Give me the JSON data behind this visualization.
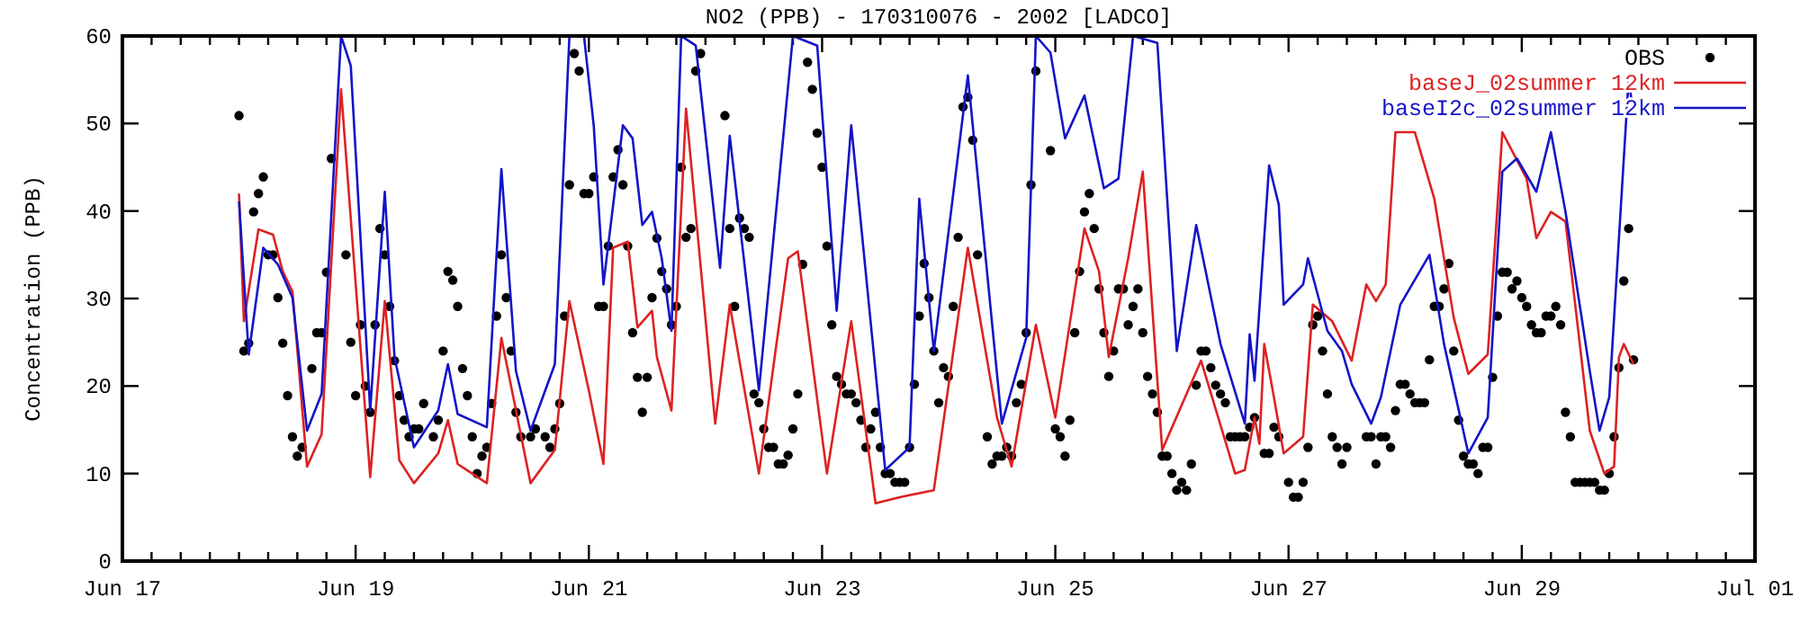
{
  "chart_data": {
    "type": "line",
    "title": "NO2 (PPB) - 170310076 - 2002 [LADCO]",
    "ylabel": "Concentration (PPB)",
    "legend": "top right",
    "grid": false,
    "xlim": [
      "2002-06-17T00:00",
      "2002-07-01T00:00"
    ],
    "xticks": [
      {
        "value": "2002-06-17T00:00",
        "label": "Jun 17"
      },
      {
        "value": "2002-06-17T06:00",
        "label": null
      },
      {
        "value": "2002-06-17T12:00",
        "label": null
      },
      {
        "value": "2002-06-17T18:00",
        "label": null
      },
      {
        "value": "2002-06-18T00:00",
        "label": null
      },
      {
        "value": "2002-06-18T06:00",
        "label": null
      },
      {
        "value": "2002-06-18T12:00",
        "label": null
      },
      {
        "value": "2002-06-18T18:00",
        "label": null
      },
      {
        "value": "2002-06-19T00:00",
        "label": "Jun 19"
      },
      {
        "value": "2002-06-19T06:00",
        "label": null
      },
      {
        "value": "2002-06-19T12:00",
        "label": null
      },
      {
        "value": "2002-06-19T18:00",
        "label": null
      },
      {
        "value": "2002-06-20T00:00",
        "label": null
      },
      {
        "value": "2002-06-20T06:00",
        "label": null
      },
      {
        "value": "2002-06-20T12:00",
        "label": null
      },
      {
        "value": "2002-06-20T18:00",
        "label": null
      },
      {
        "value": "2002-06-21T00:00",
        "label": "Jun 21"
      },
      {
        "value": "2002-06-21T06:00",
        "label": null
      },
      {
        "value": "2002-06-21T12:00",
        "label": null
      },
      {
        "value": "2002-06-21T18:00",
        "label": null
      },
      {
        "value": "2002-06-22T00:00",
        "label": null
      },
      {
        "value": "2002-06-22T06:00",
        "label": null
      },
      {
        "value": "2002-06-22T12:00",
        "label": null
      },
      {
        "value": "2002-06-22T18:00",
        "label": null
      },
      {
        "value": "2002-06-23T00:00",
        "label": "Jun 23"
      },
      {
        "value": "2002-06-23T06:00",
        "label": null
      },
      {
        "value": "2002-06-23T12:00",
        "label": null
      },
      {
        "value": "2002-06-23T18:00",
        "label": null
      },
      {
        "value": "2002-06-24T00:00",
        "label": null
      },
      {
        "value": "2002-06-24T06:00",
        "label": null
      },
      {
        "value": "2002-06-24T12:00",
        "label": null
      },
      {
        "value": "2002-06-24T18:00",
        "label": null
      },
      {
        "value": "2002-06-25T00:00",
        "label": "Jun 25"
      },
      {
        "value": "2002-06-25T06:00",
        "label": null
      },
      {
        "value": "2002-06-25T12:00",
        "label": null
      },
      {
        "value": "2002-06-25T18:00",
        "label": null
      },
      {
        "value": "2002-06-26T00:00",
        "label": null
      },
      {
        "value": "2002-06-26T06:00",
        "label": null
      },
      {
        "value": "2002-06-26T12:00",
        "label": null
      },
      {
        "value": "2002-06-26T18:00",
        "label": null
      },
      {
        "value": "2002-06-27T00:00",
        "label": "Jun 27"
      },
      {
        "value": "2002-06-27T06:00",
        "label": null
      },
      {
        "value": "2002-06-27T12:00",
        "label": null
      },
      {
        "value": "2002-06-27T18:00",
        "label": null
      },
      {
        "value": "2002-06-28T00:00",
        "label": null
      },
      {
        "value": "2002-06-28T06:00",
        "label": null
      },
      {
        "value": "2002-06-28T12:00",
        "label": null
      },
      {
        "value": "2002-06-28T18:00",
        "label": null
      },
      {
        "value": "2002-06-29T00:00",
        "label": "Jun 29"
      },
      {
        "value": "2002-06-29T06:00",
        "label": null
      },
      {
        "value": "2002-06-29T12:00",
        "label": null
      },
      {
        "value": "2002-06-29T18:00",
        "label": null
      },
      {
        "value": "2002-06-30T00:00",
        "label": null
      },
      {
        "value": "2002-06-30T06:00",
        "label": null
      },
      {
        "value": "2002-06-30T12:00",
        "label": null
      },
      {
        "value": "2002-06-30T18:00",
        "label": null
      },
      {
        "value": "2002-07-01T00:00",
        "label": "Jul 01"
      }
    ],
    "ylim": [
      0,
      60
    ],
    "yticks": [
      0,
      10,
      20,
      30,
      40,
      50,
      60
    ],
    "series": [
      {
        "name": "OBS",
        "type": "scatter",
        "marker": "circle",
        "color": "#000000",
        "x": [
          "2002-06-18T00:00",
          "2002-06-18T01:00",
          "2002-06-18T02:00",
          "2002-06-18T03:00",
          "2002-06-18T04:00",
          "2002-06-18T05:00",
          "2002-06-18T06:00",
          "2002-06-18T07:00",
          "2002-06-18T08:00",
          "2002-06-18T09:00",
          "2002-06-18T10:00",
          "2002-06-18T11:00",
          "2002-06-18T12:00",
          "2002-06-18T13:00",
          "2002-06-18T15:00",
          "2002-06-18T16:00",
          "2002-06-18T17:00",
          "2002-06-18T18:00",
          "2002-06-18T19:00",
          "2002-06-18T22:00",
          "2002-06-18T23:00",
          "2002-06-19T00:00",
          "2002-06-19T01:00",
          "2002-06-19T02:00",
          "2002-06-19T03:00",
          "2002-06-19T04:00",
          "2002-06-19T05:00",
          "2002-06-19T06:00",
          "2002-06-19T07:00",
          "2002-06-19T08:00",
          "2002-06-19T09:00",
          "2002-06-19T10:00",
          "2002-06-19T11:00",
          "2002-06-19T12:00",
          "2002-06-19T13:00",
          "2002-06-19T14:00",
          "2002-06-19T16:00",
          "2002-06-19T17:00",
          "2002-06-19T18:00",
          "2002-06-19T19:00",
          "2002-06-19T20:00",
          "2002-06-19T21:00",
          "2002-06-19T22:00",
          "2002-06-19T23:00",
          "2002-06-20T00:00",
          "2002-06-20T01:00",
          "2002-06-20T02:00",
          "2002-06-20T03:00",
          "2002-06-20T04:00",
          "2002-06-20T05:00",
          "2002-06-20T06:00",
          "2002-06-20T07:00",
          "2002-06-20T08:00",
          "2002-06-20T09:00",
          "2002-06-20T10:00",
          "2002-06-20T12:00",
          "2002-06-20T13:00",
          "2002-06-20T15:00",
          "2002-06-20T16:00",
          "2002-06-20T17:00",
          "2002-06-20T18:00",
          "2002-06-20T19:00",
          "2002-06-20T20:00",
          "2002-06-20T21:00",
          "2002-06-20T22:00",
          "2002-06-20T23:00",
          "2002-06-21T00:00",
          "2002-06-21T01:00",
          "2002-06-21T02:00",
          "2002-06-21T03:00",
          "2002-06-21T04:00",
          "2002-06-21T05:00",
          "2002-06-21T06:00",
          "2002-06-21T07:00",
          "2002-06-21T08:00",
          "2002-06-21T09:00",
          "2002-06-21T10:00",
          "2002-06-21T11:00",
          "2002-06-21T12:00",
          "2002-06-21T13:00",
          "2002-06-21T14:00",
          "2002-06-21T15:00",
          "2002-06-21T16:00",
          "2002-06-21T17:00",
          "2002-06-21T18:00",
          "2002-06-21T19:00",
          "2002-06-21T20:00",
          "2002-06-21T21:00",
          "2002-06-21T22:00",
          "2002-06-21T23:00",
          "2002-06-22T04:00",
          "2002-06-22T05:00",
          "2002-06-22T06:00",
          "2002-06-22T07:00",
          "2002-06-22T08:00",
          "2002-06-22T09:00",
          "2002-06-22T10:00",
          "2002-06-22T11:00",
          "2002-06-22T12:00",
          "2002-06-22T13:00",
          "2002-06-22T14:00",
          "2002-06-22T15:00",
          "2002-06-22T16:00",
          "2002-06-22T17:00",
          "2002-06-22T18:00",
          "2002-06-22T19:00",
          "2002-06-22T20:00",
          "2002-06-22T21:00",
          "2002-06-22T22:00",
          "2002-06-22T23:00",
          "2002-06-23T00:00",
          "2002-06-23T01:00",
          "2002-06-23T02:00",
          "2002-06-23T03:00",
          "2002-06-23T04:00",
          "2002-06-23T05:00",
          "2002-06-23T06:00",
          "2002-06-23T07:00",
          "2002-06-23T08:00",
          "2002-06-23T09:00",
          "2002-06-23T10:00",
          "2002-06-23T11:00",
          "2002-06-23T12:00",
          "2002-06-23T13:00",
          "2002-06-23T14:00",
          "2002-06-23T15:00",
          "2002-06-23T16:00",
          "2002-06-23T17:00",
          "2002-06-23T18:00",
          "2002-06-23T19:00",
          "2002-06-23T20:00",
          "2002-06-23T21:00",
          "2002-06-23T22:00",
          "2002-06-23T23:00",
          "2002-06-24T00:00",
          "2002-06-24T01:00",
          "2002-06-24T02:00",
          "2002-06-24T03:00",
          "2002-06-24T04:00",
          "2002-06-24T05:00",
          "2002-06-24T06:00",
          "2002-06-24T07:00",
          "2002-06-24T08:00",
          "2002-06-24T10:00",
          "2002-06-24T11:00",
          "2002-06-24T12:00",
          "2002-06-24T13:00",
          "2002-06-24T14:00",
          "2002-06-24T15:00",
          "2002-06-24T16:00",
          "2002-06-24T17:00",
          "2002-06-24T18:00",
          "2002-06-24T19:00",
          "2002-06-24T20:00",
          "2002-06-24T23:00",
          "2002-06-25T00:00",
          "2002-06-25T01:00",
          "2002-06-25T02:00",
          "2002-06-25T03:00",
          "2002-06-25T04:00",
          "2002-06-25T05:00",
          "2002-06-25T06:00",
          "2002-06-25T07:00",
          "2002-06-25T08:00",
          "2002-06-25T09:00",
          "2002-06-25T10:00",
          "2002-06-25T11:00",
          "2002-06-25T12:00",
          "2002-06-25T13:00",
          "2002-06-25T14:00",
          "2002-06-25T15:00",
          "2002-06-25T16:00",
          "2002-06-25T17:00",
          "2002-06-25T18:00",
          "2002-06-25T19:00",
          "2002-06-25T20:00",
          "2002-06-25T21:00",
          "2002-06-25T22:00",
          "2002-06-25T23:00",
          "2002-06-26T00:00",
          "2002-06-26T01:00",
          "2002-06-26T02:00",
          "2002-06-26T03:00",
          "2002-06-26T04:00",
          "2002-06-26T05:00",
          "2002-06-26T06:00",
          "2002-06-26T07:00",
          "2002-06-26T08:00",
          "2002-06-26T09:00",
          "2002-06-26T10:00",
          "2002-06-26T11:00",
          "2002-06-26T12:00",
          "2002-06-26T13:00",
          "2002-06-26T14:00",
          "2002-06-26T15:00",
          "2002-06-26T16:00",
          "2002-06-26T17:00",
          "2002-06-26T19:00",
          "2002-06-26T20:00",
          "2002-06-26T21:00",
          "2002-06-26T22:00",
          "2002-06-27T00:00",
          "2002-06-27T01:00",
          "2002-06-27T02:00",
          "2002-06-27T03:00",
          "2002-06-27T04:00",
          "2002-06-27T05:00",
          "2002-06-27T06:00",
          "2002-06-27T07:00",
          "2002-06-27T08:00",
          "2002-06-27T09:00",
          "2002-06-27T10:00",
          "2002-06-27T11:00",
          "2002-06-27T12:00",
          "2002-06-27T16:00",
          "2002-06-27T17:00",
          "2002-06-27T18:00",
          "2002-06-27T19:00",
          "2002-06-27T20:00",
          "2002-06-27T21:00",
          "2002-06-27T22:00",
          "2002-06-27T23:00",
          "2002-06-28T00:00",
          "2002-06-28T01:00",
          "2002-06-28T02:00",
          "2002-06-28T03:00",
          "2002-06-28T04:00",
          "2002-06-28T05:00",
          "2002-06-28T06:00",
          "2002-06-28T07:00",
          "2002-06-28T08:00",
          "2002-06-28T09:00",
          "2002-06-28T10:00",
          "2002-06-28T11:00",
          "2002-06-28T12:00",
          "2002-06-28T13:00",
          "2002-06-28T14:00",
          "2002-06-28T15:00",
          "2002-06-28T16:00",
          "2002-06-28T17:00",
          "2002-06-28T18:00",
          "2002-06-28T19:00",
          "2002-06-28T20:00",
          "2002-06-28T21:00",
          "2002-06-28T22:00",
          "2002-06-28T23:00",
          "2002-06-29T00:00",
          "2002-06-29T01:00",
          "2002-06-29T02:00",
          "2002-06-29T03:00",
          "2002-06-29T04:00",
          "2002-06-29T05:00",
          "2002-06-29T06:00",
          "2002-06-29T07:00",
          "2002-06-29T08:00",
          "2002-06-29T09:00",
          "2002-06-29T10:00",
          "2002-06-29T11:00",
          "2002-06-29T12:00",
          "2002-06-29T13:00",
          "2002-06-29T14:00",
          "2002-06-29T15:00",
          "2002-06-29T16:00",
          "2002-06-29T17:00",
          "2002-06-29T18:00",
          "2002-06-29T19:00",
          "2002-06-29T20:00",
          "2002-06-29T21:00",
          "2002-06-29T22:00",
          "2002-06-29T23:00"
        ],
        "values": [
          50.9,
          24.0,
          24.9,
          39.9,
          42.0,
          43.9,
          35.0,
          35.0,
          30.1,
          24.9,
          18.9,
          14.2,
          12.0,
          13.0,
          22.0,
          26.1,
          26.1,
          33.0,
          46.0,
          35.0,
          25.0,
          18.9,
          27.0,
          20.0,
          17.0,
          27.0,
          38.0,
          35.0,
          29.1,
          22.9,
          18.9,
          16.1,
          14.2,
          15.1,
          15.1,
          18.0,
          14.2,
          16.1,
          24.0,
          33.1,
          32.1,
          29.1,
          22.0,
          18.9,
          14.2,
          10.0,
          12.0,
          13.0,
          18.0,
          28.0,
          35.0,
          30.1,
          24.0,
          17.0,
          14.2,
          14.2,
          15.1,
          14.2,
          13.0,
          15.1,
          18.0,
          28.0,
          43.0,
          58.0,
          56.0,
          42.0,
          42.0,
          43.9,
          29.1,
          29.1,
          36.0,
          43.9,
          47.0,
          43.0,
          36.0,
          26.1,
          21.0,
          17.0,
          21.0,
          30.1,
          36.9,
          33.1,
          31.1,
          27.0,
          29.1,
          45.0,
          37.0,
          38.0,
          56.0,
          58.0,
          50.9,
          38.0,
          29.1,
          39.2,
          38.0,
          37.0,
          19.1,
          18.1,
          15.1,
          13.0,
          13.0,
          11.1,
          11.1,
          12.1,
          15.1,
          19.1,
          33.9,
          57.0,
          53.9,
          48.9,
          45.0,
          36.0,
          27.0,
          21.1,
          20.2,
          19.1,
          19.1,
          18.1,
          16.1,
          13.0,
          15.1,
          17.0,
          13.0,
          10.0,
          10.0,
          9.0,
          9.0,
          9.0,
          13.0,
          20.2,
          28.0,
          34.0,
          30.1,
          24.0,
          18.1,
          22.1,
          21.1,
          29.1,
          37.0,
          51.9,
          53.0,
          48.1,
          35.0,
          14.2,
          11.1,
          12.0,
          12.0,
          13.0,
          12.0,
          18.1,
          20.2,
          26.1,
          43.0,
          56.0,
          46.9,
          15.1,
          14.2,
          12.0,
          16.1,
          26.1,
          33.1,
          39.9,
          42.0,
          38.0,
          31.1,
          26.1,
          21.1,
          24.0,
          31.1,
          31.1,
          27.0,
          29.1,
          31.1,
          26.1,
          21.1,
          19.1,
          17.0,
          12.0,
          12.0,
          10.0,
          8.1,
          9.0,
          8.1,
          11.1,
          20.1,
          24.0,
          24.0,
          22.1,
          20.1,
          19.1,
          18.1,
          14.2,
          14.2,
          14.2,
          14.2,
          15.3,
          16.4,
          12.3,
          12.3,
          15.3,
          14.2,
          9.0,
          7.3,
          7.3,
          9.0,
          13.0,
          27.0,
          28.0,
          24.0,
          19.1,
          14.2,
          13.0,
          11.1,
          13.0,
          14.2,
          14.2,
          11.1,
          14.2,
          14.2,
          13.0,
          17.2,
          20.2,
          20.2,
          19.1,
          18.1,
          18.1,
          18.1,
          23.0,
          29.1,
          29.1,
          31.1,
          34.0,
          24.0,
          16.1,
          12.0,
          11.1,
          11.1,
          10.0,
          13.0,
          13.0,
          21.0,
          28.0,
          33.0,
          33.0,
          31.1,
          32.0,
          30.1,
          29.1,
          27.0,
          26.1,
          26.1,
          28.0,
          28.0,
          29.1,
          27.0,
          17.0,
          14.2,
          9.0,
          9.0,
          9.0,
          9.0,
          9.0,
          8.1,
          8.1,
          10.0,
          14.2,
          22.1,
          32.0,
          38.0,
          23.0
        ]
      },
      {
        "name": "baseJ_02summer 12km",
        "marker": "none",
        "color": "#dd2222",
        "x": [
          "2002-06-18T00:00",
          "2002-06-18T01:00",
          "2002-06-18T04:00",
          "2002-06-18T07:00",
          "2002-06-18T09:00",
          "2002-06-18T11:00",
          "2002-06-18T14:00",
          "2002-06-18T17:00",
          "2002-06-18T21:00",
          "2002-06-19T03:00",
          "2002-06-19T06:00",
          "2002-06-19T09:00",
          "2002-06-19T12:00",
          "2002-06-19T17:00",
          "2002-06-19T19:00",
          "2002-06-19T21:00",
          "2002-06-20T03:00",
          "2002-06-20T06:00",
          "2002-06-20T12:00",
          "2002-06-20T17:00",
          "2002-06-20T20:00",
          "2002-06-21T00:00",
          "2002-06-21T03:00",
          "2002-06-21T05:00",
          "2002-06-21T08:00",
          "2002-06-21T10:00",
          "2002-06-21T13:00",
          "2002-06-21T14:00",
          "2002-06-21T17:00",
          "2002-06-21T20:00",
          "2002-06-22T02:00",
          "2002-06-22T05:00",
          "2002-06-22T11:00",
          "2002-06-22T17:00",
          "2002-06-22T19:00",
          "2002-06-23T01:00",
          "2002-06-23T06:00",
          "2002-06-23T11:00",
          "2002-06-23T16:00",
          "2002-06-23T23:00",
          "2002-06-24T06:00",
          "2002-06-24T12:00",
          "2002-06-24T15:00",
          "2002-06-24T20:00",
          "2002-06-25T00:00",
          "2002-06-25T06:00",
          "2002-06-25T09:00",
          "2002-06-25T11:00",
          "2002-06-25T15:00",
          "2002-06-25T18:00",
          "2002-06-25T22:00",
          "2002-06-26T06:00",
          "2002-06-26T13:00",
          "2002-06-26T15:00",
          "2002-06-26T17:00",
          "2002-06-26T18:00",
          "2002-06-26T19:00",
          "2002-06-26T21:00",
          "2002-06-26T23:00",
          "2002-06-27T03:00",
          "2002-06-27T05:00",
          "2002-06-27T09:00",
          "2002-06-27T13:00",
          "2002-06-27T16:00",
          "2002-06-27T18:00",
          "2002-06-27T20:00",
          "2002-06-27T22:00",
          "2002-06-28T02:00",
          "2002-06-28T06:00",
          "2002-06-28T10:00",
          "2002-06-28T13:00",
          "2002-06-28T17:00",
          "2002-06-28T20:00",
          "2002-06-29T01:00",
          "2002-06-29T03:00",
          "2002-06-29T06:00",
          "2002-06-29T09:00",
          "2002-06-29T11:00",
          "2002-06-29T14:00",
          "2002-06-29T17:00",
          "2002-06-29T19:00",
          "2002-06-29T20:00",
          "2002-06-29T21:00",
          "2002-06-29T23:00"
        ],
        "values": [
          42.0,
          27.4,
          37.9,
          37.3,
          33.1,
          30.8,
          10.8,
          14.5,
          53.9,
          9.6,
          29.7,
          11.5,
          8.9,
          12.3,
          16.1,
          11.1,
          8.9,
          25.5,
          8.9,
          12.7,
          29.7,
          19.5,
          11.1,
          35.8,
          36.5,
          26.7,
          28.6,
          23.3,
          17.2,
          51.7,
          15.7,
          29.3,
          10.0,
          34.6,
          35.4,
          10.0,
          27.4,
          6.6,
          7.3,
          8.1,
          35.8,
          16.4,
          10.8,
          27.0,
          16.4,
          38.0,
          33.1,
          23.3,
          34.6,
          44.5,
          12.7,
          22.9,
          10.0,
          10.4,
          16.4,
          13.4,
          24.8,
          18.7,
          12.3,
          14.2,
          29.3,
          27.4,
          22.9,
          31.6,
          29.7,
          31.6,
          49.0,
          49.0,
          41.4,
          27.8,
          21.4,
          23.6,
          49.0,
          43.7,
          36.9,
          39.9,
          38.8,
          29.3,
          14.9,
          10.0,
          10.8,
          23.3,
          24.8,
          22.5
        ]
      },
      {
        "name": "baseI2c_02summer 12km",
        "marker": "none",
        "color": "#1414c8",
        "x": [
          "2002-06-18T00:00",
          "2002-06-18T02:00",
          "2002-06-18T05:00",
          "2002-06-18T08:00",
          "2002-06-18T11:00",
          "2002-06-18T14:00",
          "2002-06-18T17:00",
          "2002-06-18T21:00",
          "2002-06-18T23:00",
          "2002-06-19T03:00",
          "2002-06-19T06:00",
          "2002-06-19T08:00",
          "2002-06-19T12:00",
          "2002-06-19T17:00",
          "2002-06-19T19:00",
          "2002-06-19T21:00",
          "2002-06-20T03:00",
          "2002-06-20T06:00",
          "2002-06-20T09:00",
          "2002-06-20T12:00",
          "2002-06-20T17:00",
          "2002-06-20T20:00",
          "2002-06-20T23:00",
          "2002-06-21T01:00",
          "2002-06-21T03:00",
          "2002-06-21T07:00",
          "2002-06-21T09:00",
          "2002-06-21T11:00",
          "2002-06-21T13:00",
          "2002-06-21T15:00",
          "2002-06-21T17:00",
          "2002-06-21T19:00",
          "2002-06-21T22:00",
          "2002-06-22T03:00",
          "2002-06-22T05:00",
          "2002-06-22T11:00",
          "2002-06-22T18:00",
          "2002-06-22T23:00",
          "2002-06-23T03:00",
          "2002-06-23T06:00",
          "2002-06-23T13:00",
          "2002-06-23T18:00",
          "2002-06-23T20:00",
          "2002-06-23T23:00",
          "2002-06-24T06:00",
          "2002-06-24T13:00",
          "2002-06-24T18:00",
          "2002-06-24T20:00",
          "2002-06-24T23:00",
          "2002-06-25T02:00",
          "2002-06-25T06:00",
          "2002-06-25T10:00",
          "2002-06-25T13:00",
          "2002-06-25T16:00",
          "2002-06-25T21:00",
          "2002-06-26T01:00",
          "2002-06-26T05:00",
          "2002-06-26T10:00",
          "2002-06-26T15:00",
          "2002-06-26T16:00",
          "2002-06-26T17:00",
          "2002-06-26T20:00",
          "2002-06-26T22:00",
          "2002-06-26T23:00",
          "2002-06-27T03:00",
          "2002-06-27T04:00",
          "2002-06-27T08:00",
          "2002-06-27T11:00",
          "2002-06-27T13:00",
          "2002-06-27T17:00",
          "2002-06-27T19:00",
          "2002-06-27T23:00",
          "2002-06-28T05:00",
          "2002-06-28T08:00",
          "2002-06-28T13:00",
          "2002-06-28T17:00",
          "2002-06-28T20:00",
          "2002-06-28T23:00",
          "2002-06-29T03:00",
          "2002-06-29T06:00",
          "2002-06-29T09:00",
          "2002-06-29T14:00",
          "2002-06-29T16:00",
          "2002-06-29T18:00",
          "2002-06-29T22:00",
          "2002-06-29T23:00"
        ],
        "values": [
          41.1,
          23.6,
          35.8,
          33.9,
          30.1,
          14.9,
          19.1,
          60,
          56.6,
          17.2,
          42.2,
          23.3,
          13.0,
          17.2,
          22.5,
          16.8,
          15.3,
          44.8,
          21.7,
          14.9,
          22.5,
          60,
          60,
          49.8,
          31.6,
          49.8,
          48.3,
          38.4,
          39.9,
          34.6,
          26.3,
          60,
          58.9,
          33.5,
          48.6,
          19.5,
          60,
          58.9,
          28.6,
          49.8,
          10.4,
          13.0,
          41.4,
          24.0,
          55.5,
          15.7,
          25.5,
          60,
          58.1,
          48.3,
          53.2,
          42.6,
          43.7,
          60,
          59.2,
          24.0,
          38.4,
          24.8,
          15.7,
          25.9,
          20.6,
          45.2,
          40.7,
          29.3,
          31.6,
          34.6,
          26.3,
          24.0,
          20.2,
          15.7,
          18.7,
          29.3,
          35.0,
          24.8,
          12.3,
          16.4,
          44.5,
          46.0,
          42.2,
          49.0,
          39.9,
          21.7,
          14.9,
          18.7,
          55.1,
          50.9
        ]
      }
    ]
  }
}
